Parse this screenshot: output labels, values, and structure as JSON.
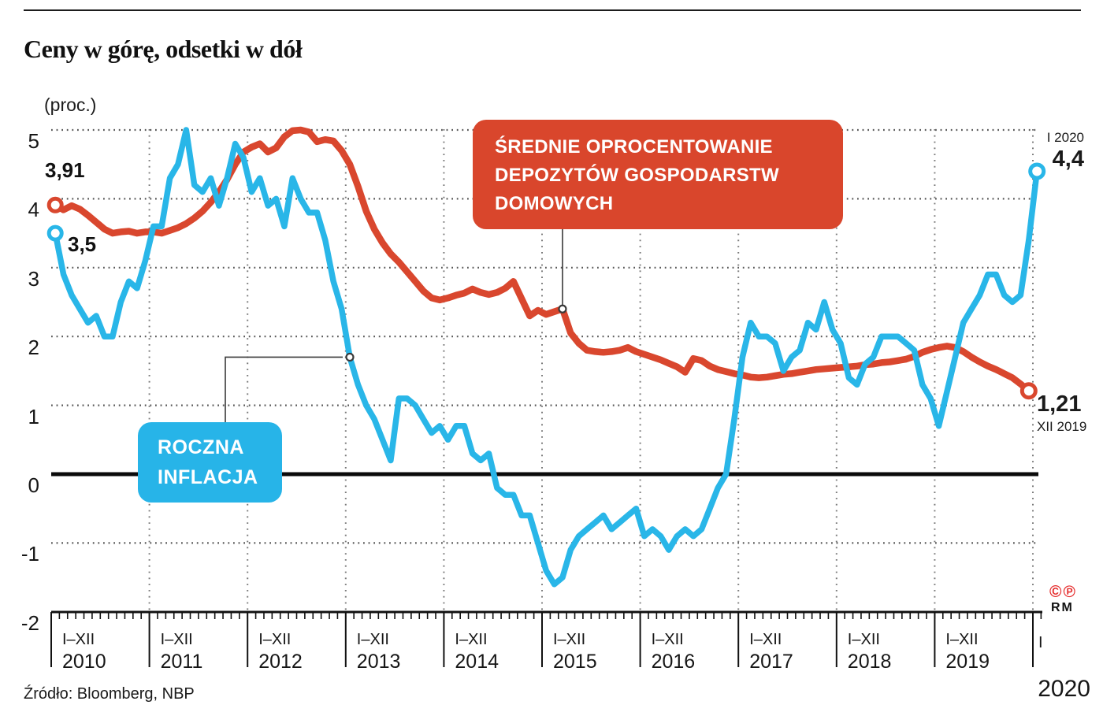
{
  "header": {
    "title": "Ceny w górę, odsetki w dół",
    "unit_label": "(proc.)"
  },
  "axis": {
    "y_ticks": [
      "5",
      "4",
      "3",
      "2",
      "1",
      "0",
      "-1",
      "-2"
    ],
    "years": [
      {
        "range": "I–XII",
        "year": "2010"
      },
      {
        "range": "I–XII",
        "year": "2011"
      },
      {
        "range": "I–XII",
        "year": "2012"
      },
      {
        "range": "I–XII",
        "year": "2013"
      },
      {
        "range": "I–XII",
        "year": "2014"
      },
      {
        "range": "I–XII",
        "year": "2015"
      },
      {
        "range": "I–XII",
        "year": "2016"
      },
      {
        "range": "I–XII",
        "year": "2017"
      },
      {
        "range": "I–XII",
        "year": "2018"
      },
      {
        "range": "I–XII",
        "year": "2019"
      }
    ],
    "final_month": "I",
    "corner_year": "2020"
  },
  "labels": {
    "start_deposit": "3,91",
    "start_inflation": "3,5",
    "end_inflation_period": "I 2020",
    "end_inflation_value": "4,4",
    "end_deposit_value": "1,21",
    "end_deposit_period": "XII 2019"
  },
  "annotations": {
    "deposit": {
      "lines": [
        "ŚREDNIE OPROCENTOWANIE",
        "DEPOZYTÓW GOSPODARSTW",
        "DOMOWYCH"
      ]
    },
    "inflation": {
      "lines": [
        "ROCZNA",
        "INFLACJA"
      ]
    }
  },
  "footer": {
    "source": "Źródło: Bloomberg, NBP",
    "copyright_marks": "©℗",
    "credit": "RM"
  },
  "colors": {
    "inflation_blue": "#29b6e8",
    "deposit_red": "#d9472e",
    "annotation_red_bg": "#d9462c",
    "annotation_blue_bg": "#27b4e8",
    "copyright_red": "#e52b2b",
    "ink": "#1a1a1a"
  },
  "chart_data": {
    "type": "line",
    "title": "Ceny w górę, odsetki w dół",
    "ylabel": "(proc.)",
    "ylim": [
      -2,
      5
    ],
    "grid": "dotted, horizontal at integers and vertical at year boundaries; solid bold line at 0",
    "legend_position": "inline annotation boxes",
    "x_unit": "months, I 2010 – I 2020",
    "x_years": [
      2010,
      2011,
      2012,
      2013,
      2014,
      2015,
      2016,
      2017,
      2018,
      2019,
      2020
    ],
    "series": [
      {
        "name": "ŚREDNIE OPROCENTOWANIE DEPOZYTÓW GOSPODARSTW DOMOWYCH",
        "color": "#d9472e",
        "first_point": {
          "label": "3,91",
          "x": "I 2010"
        },
        "last_point": {
          "label": "1,21",
          "x": "XII 2019"
        },
        "callout_month_index": 62,
        "values": [
          3.91,
          3.84,
          3.9,
          3.85,
          3.76,
          3.66,
          3.56,
          3.5,
          3.52,
          3.53,
          3.5,
          3.52,
          3.52,
          3.5,
          3.54,
          3.58,
          3.64,
          3.72,
          3.82,
          3.95,
          4.1,
          4.28,
          4.5,
          4.68,
          4.75,
          4.8,
          4.68,
          4.74,
          4.9,
          4.99,
          5.0,
          4.97,
          4.83,
          4.86,
          4.84,
          4.7,
          4.5,
          4.18,
          3.82,
          3.56,
          3.36,
          3.2,
          3.08,
          2.94,
          2.8,
          2.66,
          2.56,
          2.53,
          2.56,
          2.6,
          2.63,
          2.69,
          2.64,
          2.61,
          2.64,
          2.7,
          2.8,
          2.55,
          2.3,
          2.38,
          2.32,
          2.36,
          2.4,
          2.05,
          1.9,
          1.8,
          1.78,
          1.77,
          1.78,
          1.8,
          1.84,
          1.78,
          1.74,
          1.7,
          1.66,
          1.61,
          1.56,
          1.48,
          1.68,
          1.65,
          1.57,
          1.52,
          1.49,
          1.46,
          1.44,
          1.41,
          1.4,
          1.41,
          1.43,
          1.45,
          1.46,
          1.48,
          1.5,
          1.52,
          1.53,
          1.54,
          1.55,
          1.56,
          1.57,
          1.59,
          1.6,
          1.62,
          1.63,
          1.65,
          1.67,
          1.71,
          1.77,
          1.81,
          1.84,
          1.86,
          1.84,
          1.78,
          1.7,
          1.63,
          1.57,
          1.52,
          1.46,
          1.4,
          1.31,
          1.21
        ]
      },
      {
        "name": "ROCZNA INFLACJA",
        "color": "#29b6e8",
        "first_point": {
          "label": "3,5",
          "x": "I 2010"
        },
        "last_point": {
          "label": "4,4",
          "x": "I 2020"
        },
        "callout_month_index": 36,
        "values": [
          3.5,
          2.9,
          2.6,
          2.4,
          2.2,
          2.3,
          2.0,
          2.0,
          2.5,
          2.8,
          2.7,
          3.1,
          3.6,
          3.6,
          4.3,
          4.5,
          5.0,
          4.2,
          4.1,
          4.3,
          3.9,
          4.3,
          4.8,
          4.6,
          4.1,
          4.3,
          3.9,
          4.0,
          3.6,
          4.3,
          4.0,
          3.8,
          3.8,
          3.4,
          2.8,
          2.4,
          1.7,
          1.3,
          1.0,
          0.8,
          0.5,
          0.2,
          1.1,
          1.1,
          1.0,
          0.8,
          0.6,
          0.7,
          0.5,
          0.7,
          0.7,
          0.3,
          0.2,
          0.3,
          -0.2,
          -0.3,
          -0.3,
          -0.6,
          -0.6,
          -1.0,
          -1.4,
          -1.6,
          -1.5,
          -1.1,
          -0.9,
          -0.8,
          -0.7,
          -0.6,
          -0.8,
          -0.7,
          -0.6,
          -0.5,
          -0.9,
          -0.8,
          -0.9,
          -1.1,
          -0.9,
          -0.8,
          -0.9,
          -0.8,
          -0.5,
          -0.2,
          0.0,
          0.8,
          1.7,
          2.2,
          2.0,
          2.0,
          1.9,
          1.5,
          1.7,
          1.8,
          2.2,
          2.1,
          2.5,
          2.1,
          1.9,
          1.4,
          1.3,
          1.6,
          1.7,
          2.0,
          2.0,
          2.0,
          1.9,
          1.8,
          1.3,
          1.1,
          0.7,
          1.2,
          1.7,
          2.2,
          2.4,
          2.6,
          2.9,
          2.9,
          2.6,
          2.5,
          2.6,
          3.4,
          4.4
        ]
      }
    ]
  }
}
